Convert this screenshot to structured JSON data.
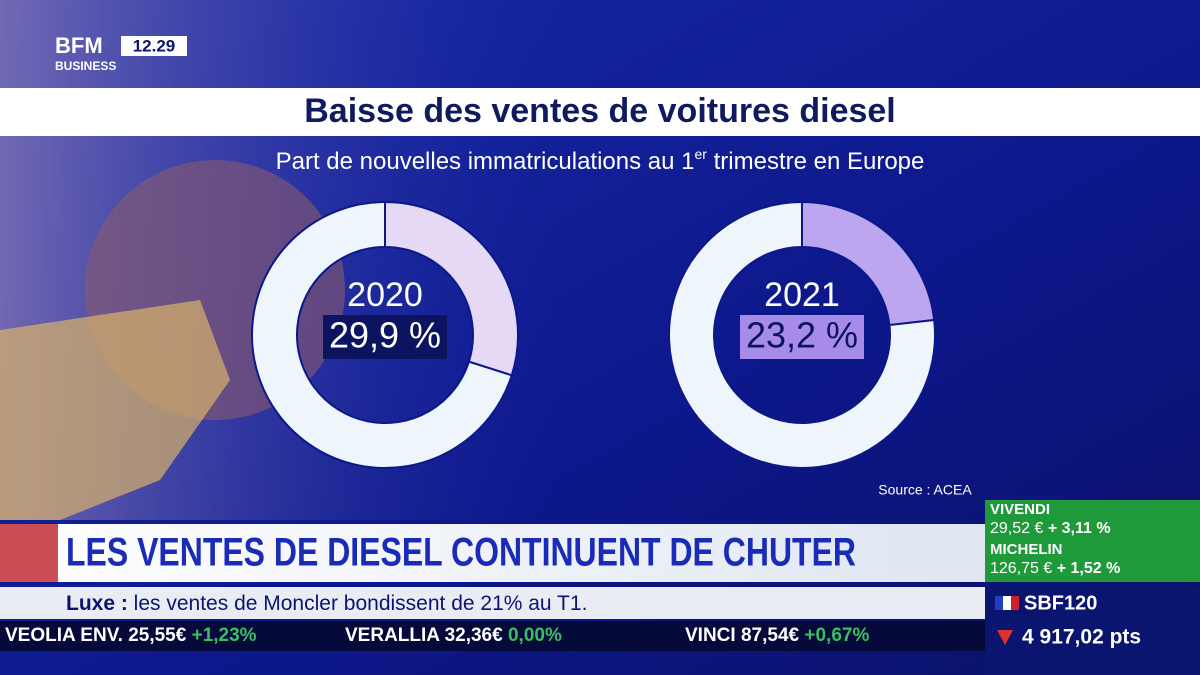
{
  "logo": {
    "brand": "BFM",
    "sub": "BUSINESS",
    "time": "12.29"
  },
  "header": {
    "title": "Baisse des ventes de voitures diesel",
    "subtitle": [
      "Part de nouvelles immatriculations au 1",
      "er",
      " trimestre en Europe"
    ],
    "source": "Source : ACEA"
  },
  "chart_data": [
    {
      "type": "pie",
      "title": "2020",
      "values": [
        29.9,
        70.1
      ],
      "value_labels": [
        "29,9 %",
        null
      ],
      "colors": [
        "#e6d9f6",
        "#eef5fb"
      ]
    },
    {
      "type": "pie",
      "title": "2021",
      "values": [
        23.2,
        76.8
      ],
      "value_labels": [
        "23,2 %",
        null
      ],
      "colors": [
        "#bba6ef",
        "#eef5fb"
      ]
    }
  ],
  "banner": {
    "headline": "LES VENTES DE DIESEL CONTINUENT DE CHUTER",
    "topic": "Luxe :",
    "text": " les ventes de Moncler bondissent de 21% au T1."
  },
  "ticker": [
    [
      "VEOLIA ENV.",
      "25,55€",
      "+1,23%"
    ],
    [
      "VERALLIA",
      "32,36€",
      "0,00%"
    ],
    [
      "VINCI",
      "87,54€",
      "+0,67%"
    ]
  ],
  "stocks": [
    [
      "VIVENDI",
      "29,52 €",
      "+ 3,11 %"
    ],
    [
      "MICHELIN",
      "126,75 €",
      "+ 1,52 %"
    ]
  ],
  "index": {
    "name": "SBF120",
    "value": "4 917,02 pts"
  }
}
